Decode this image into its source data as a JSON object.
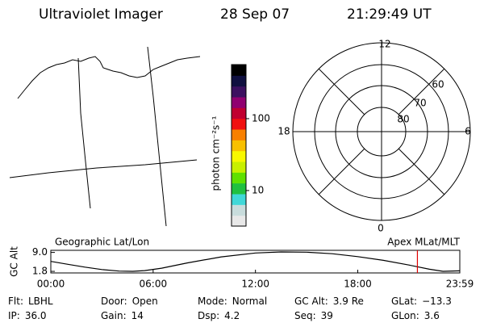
{
  "header": {
    "instrument": "Ultraviolet Imager",
    "date": "28 Sep 07",
    "time": "21:29:49 UT"
  },
  "geo_panel": {
    "label": "Geographic Lat/Lon"
  },
  "colorbar": {
    "label": "photon cm⁻²s⁻¹",
    "log": true,
    "lim": [
      3.2,
      565
    ],
    "ticks": [
      10,
      100
    ],
    "colors": [
      "#e8e8e8",
      "#c8dcdc",
      "#40d8d8",
      "#20c040",
      "#60e000",
      "#c8f000",
      "#f8f800",
      "#f8c000",
      "#f88000",
      "#f01010",
      "#c00030",
      "#900070",
      "#3c1060",
      "#101040",
      "#000000"
    ]
  },
  "polar": {
    "label": "Apex MLat/MLT",
    "mlt_labels": [
      "12",
      "18",
      "6",
      "0"
    ],
    "lat_labels": [
      "60",
      "70",
      "80"
    ]
  },
  "altitude_plot": {
    "ylabel": "GC Alt",
    "ylim": [
      1.2,
      9.8
    ],
    "yticks": [
      {
        "value": 9.0,
        "label": "9.0"
      },
      {
        "value": 1.8,
        "label": "1.8"
      }
    ],
    "xlim": [
      0,
      23.983
    ],
    "xticks": [
      {
        "value": 0,
        "label": "00:00"
      },
      {
        "value": 6,
        "label": "06:00"
      },
      {
        "value": 12,
        "label": "12:00"
      },
      {
        "value": 18,
        "label": "18:00"
      },
      {
        "value": 23.983,
        "label": "23:59"
      }
    ],
    "x": [
      0,
      1,
      2,
      3,
      4,
      4.8,
      5.5,
      6.5,
      8,
      10,
      12,
      13.5,
      15,
      16.5,
      18,
      19.5,
      21,
      22.2,
      23,
      23.983
    ],
    "values": [
      5.6,
      4.5,
      3.4,
      2.5,
      1.9,
      1.8,
      2.1,
      3.0,
      5.0,
      7.3,
      8.8,
      9.2,
      9.1,
      8.5,
      7.4,
      6.0,
      4.2,
      2.6,
      1.8,
      2.0
    ],
    "current_time": 21.497,
    "color": "#000000",
    "marker_color": "#e00000"
  },
  "status": {
    "rows": [
      [
        {
          "label": "Flt:",
          "value": "LBHL"
        },
        {
          "label": "Door:",
          "value": "Open"
        },
        {
          "label": "Mode:",
          "value": "Normal"
        },
        {
          "label": "GC Alt:",
          "value": "3.9 Re"
        },
        {
          "label": "GLat:",
          "value": "−13.3"
        }
      ],
      [
        {
          "label": "IP:",
          "value": "36.0"
        },
        {
          "label": "Gain:",
          "value": "14"
        },
        {
          "label": "Dsp:",
          "value": "4.2"
        },
        {
          "label": "Seq:",
          "value": "39"
        },
        {
          "label": "GLon:",
          "value": "3.6"
        }
      ]
    ]
  }
}
